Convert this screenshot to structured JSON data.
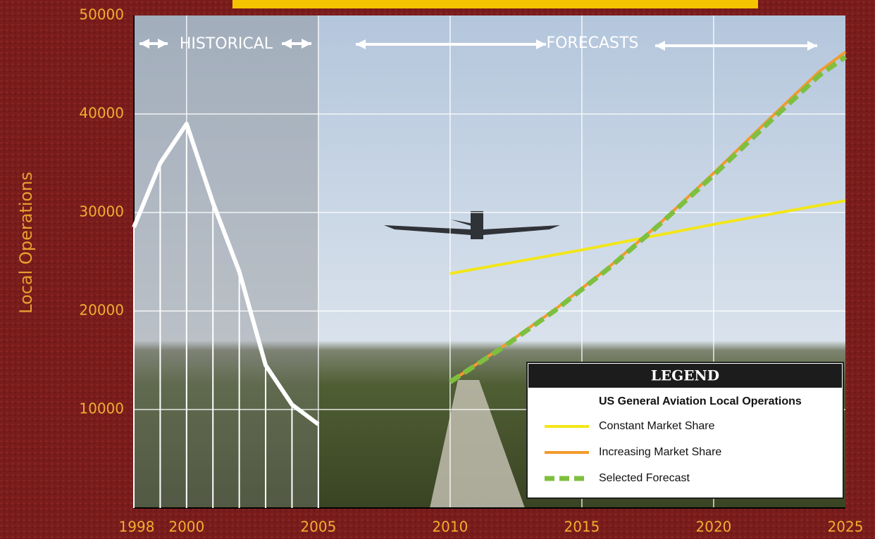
{
  "chart_data": {
    "type": "line",
    "y_label": "Local Operations",
    "annotations": [
      "HISTORICAL",
      "FORECASTS"
    ],
    "legend_title": "LEGEND",
    "legend_subtitle": "US General Aviation Local Operations",
    "legend_position": "lower right",
    "grid": true,
    "xlim": [
      1998,
      2025
    ],
    "xticks": [
      1998,
      2000,
      2005,
      2010,
      2015,
      2020,
      2025
    ],
    "ylim": [
      0,
      50000
    ],
    "yticks": [
      10000,
      20000,
      30000,
      40000,
      50000
    ],
    "series": [
      {
        "color": "#ffffff",
        "style": "solid",
        "drop_lines": true,
        "x": [
          1998,
          1999,
          2000,
          2001,
          2002,
          2003,
          2004,
          2005
        ],
        "values": [
          28500,
          35000,
          39000,
          31000,
          24000,
          14500,
          10500,
          8500
        ]
      },
      {
        "name": "Constant  Market Share",
        "color": "#f2e619",
        "style": "solid",
        "x": [
          2010,
          2015,
          2020,
          2025
        ],
        "values": [
          23800,
          26200,
          28800,
          31200
        ]
      },
      {
        "name": "Increasing Market Share",
        "color": "#f39a2c",
        "style": "solid",
        "x": [
          2010,
          2012,
          2014,
          2016,
          2018,
          2020,
          2022,
          2024,
          2025
        ],
        "values": [
          12800,
          16400,
          20200,
          24400,
          29000,
          34000,
          39200,
          44300,
          46300
        ]
      },
      {
        "name": "Selected Forecast",
        "color": "#7fbf3f",
        "style": "dashed",
        "x": [
          2010,
          2012,
          2014,
          2016,
          2018,
          2020,
          2022,
          2024,
          2025
        ],
        "values": [
          12800,
          16300,
          20100,
          24300,
          28900,
          33800,
          38900,
          43900,
          45800
        ]
      }
    ]
  }
}
